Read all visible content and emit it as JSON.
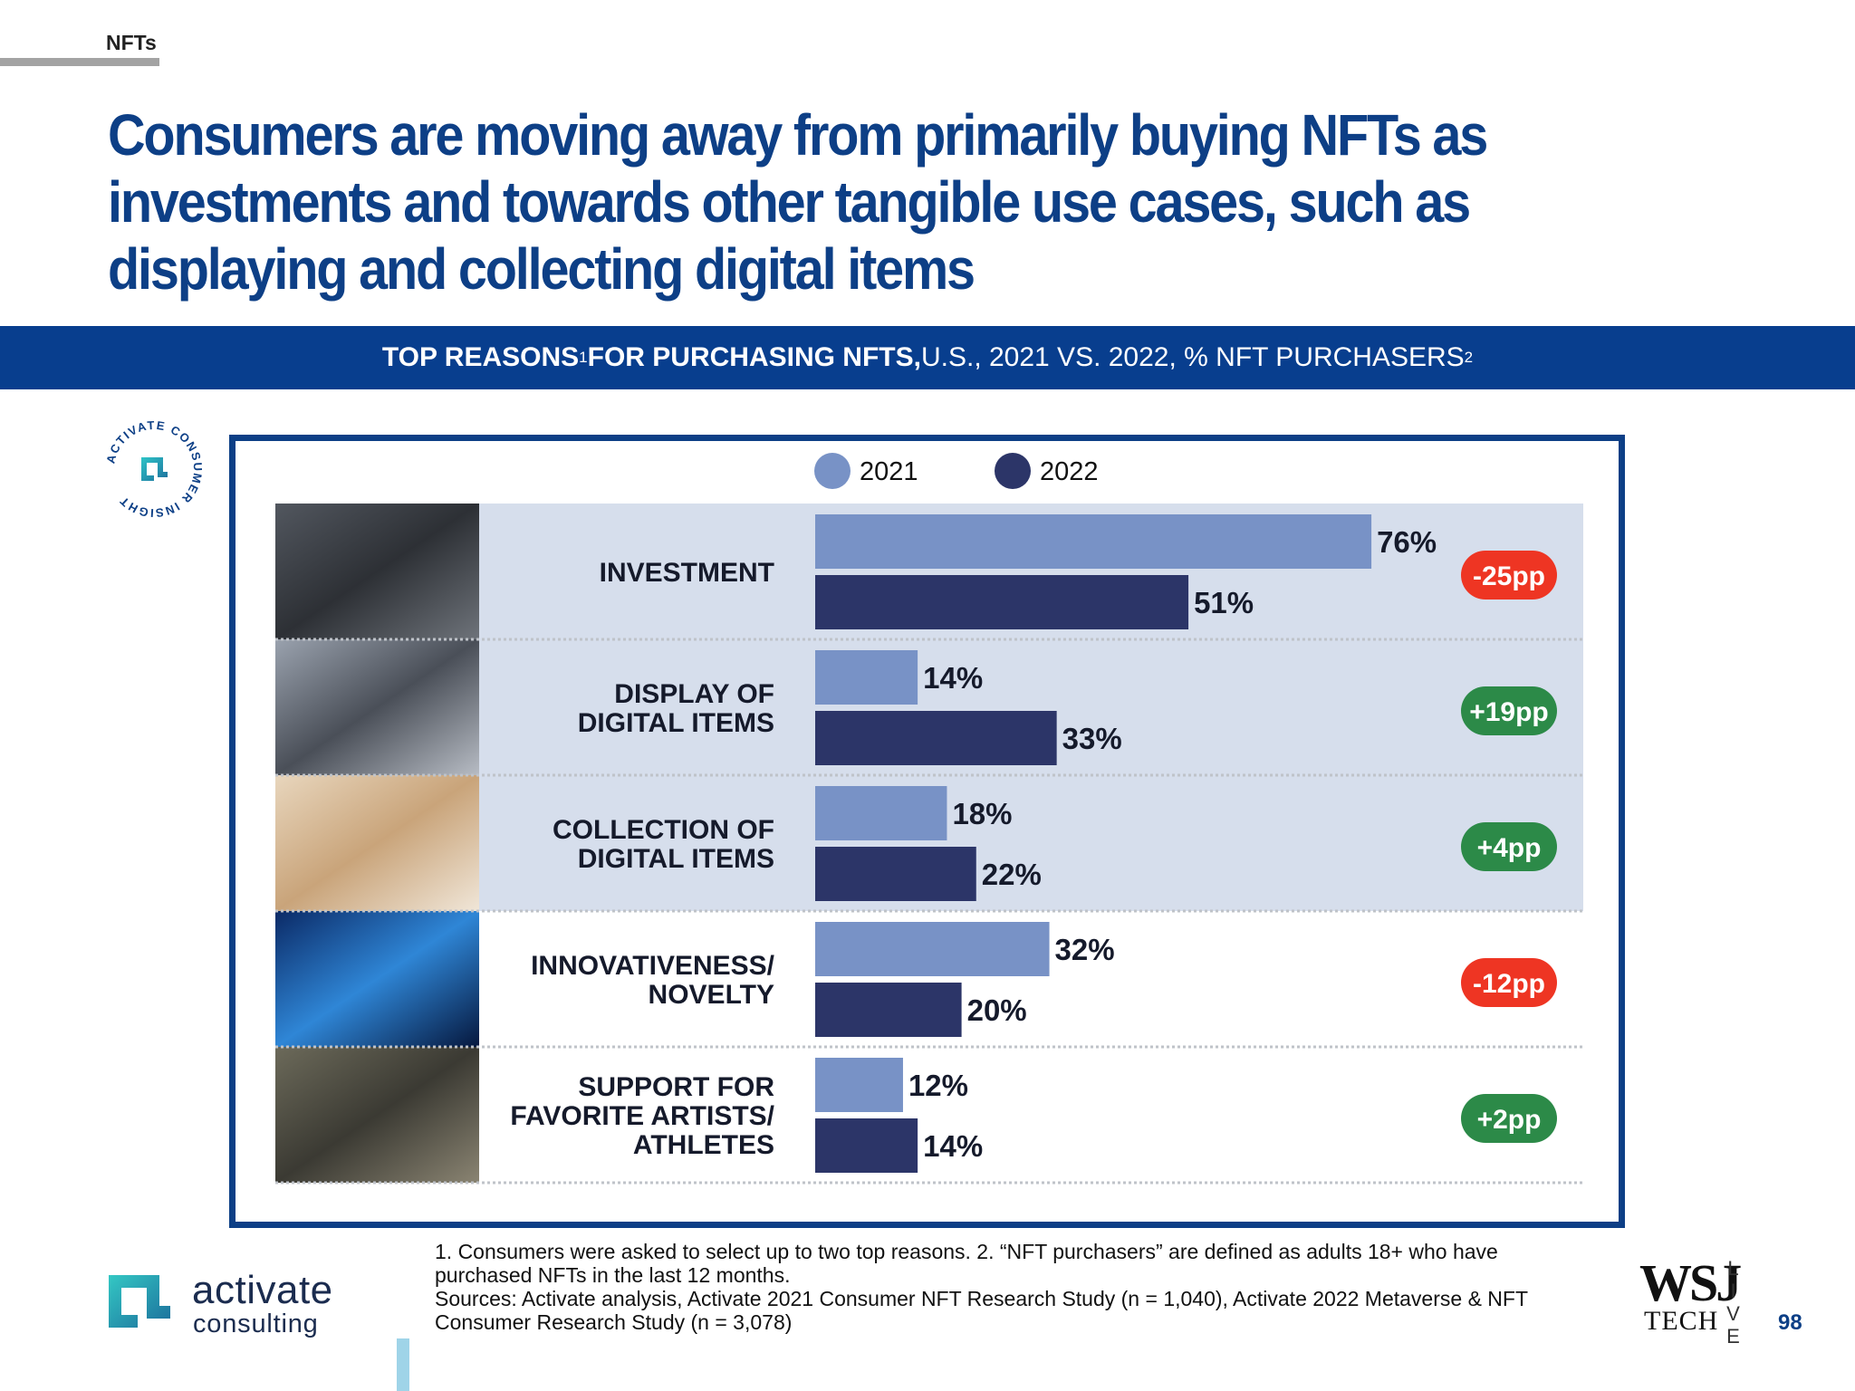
{
  "header": {
    "section": "NFTs"
  },
  "headline": "Consumers are moving away from primarily buying NFTs as investments and towards other tangible use cases, such as displaying and collecting digital items",
  "banner": {
    "bold_part": "TOP REASONS",
    "sup1": "1",
    "bold_part2": " FOR PURCHASING NFTS,",
    "rest": "U.S., 2021 VS. 2022, % NFT PURCHASERS",
    "sup2": "2"
  },
  "badge": {
    "ring_text": "ACTIVATE CONSUMER INSIGHT"
  },
  "chart_data": {
    "type": "bar",
    "orientation": "horizontal",
    "title": "TOP REASONS FOR PURCHASING NFTS, U.S., 2021 VS. 2022, % NFT PURCHASERS",
    "categories": [
      {
        "lines": [
          "INVESTMENT"
        ]
      },
      {
        "lines": [
          "DISPLAY OF",
          "DIGITAL ITEMS"
        ]
      },
      {
        "lines": [
          "COLLECTION OF",
          "DIGITAL ITEMS"
        ]
      },
      {
        "lines": [
          "INNOVATIVENESS/",
          "NOVELTY"
        ]
      },
      {
        "lines": [
          "SUPPORT FOR",
          "FAVORITE ARTISTS/",
          "ATHLETES"
        ]
      }
    ],
    "series": [
      {
        "name": "2021",
        "color": "#7892c6",
        "values": [
          76,
          14,
          18,
          32,
          12
        ],
        "labels": [
          "76%",
          "14%",
          "18%",
          "32%",
          "12%"
        ]
      },
      {
        "name": "2022",
        "color": "#2c3568",
        "values": [
          51,
          33,
          22,
          20,
          14
        ],
        "labels": [
          "51%",
          "33%",
          "22%",
          "20%",
          "14%"
        ]
      }
    ],
    "change": [
      {
        "label": "-25pp",
        "direction": "down"
      },
      {
        "label": "+19pp",
        "direction": "up"
      },
      {
        "label": "+4pp",
        "direction": "up"
      },
      {
        "label": "-12pp",
        "direction": "down"
      },
      {
        "label": "+2pp",
        "direction": "up"
      }
    ],
    "highlighted_rows": [
      0,
      1,
      2
    ],
    "legend_position": "top",
    "xlim": [
      0,
      100
    ],
    "colors": {
      "up": "#2c8a48",
      "down": "#ee3523",
      "highlight": "#d6deec"
    }
  },
  "footnote": {
    "line1": "1. Consumers were asked to select up to two top reasons.  2. “NFT purchasers” are defined as adults 18+ who have purchased NFTs in the last 12 months.",
    "line2": "Sources: Activate analysis, Activate 2021 Consumer NFT Research Study (n = 1,040), Activate 2022 Metaverse & NFT Consumer Research Study (n = 3,078)"
  },
  "logo": {
    "word1": "activate",
    "word2": "consulting"
  },
  "wsj": {
    "mark": "WSJ",
    "tech": "TECH",
    "live": "LIVE"
  },
  "page_number": "98"
}
